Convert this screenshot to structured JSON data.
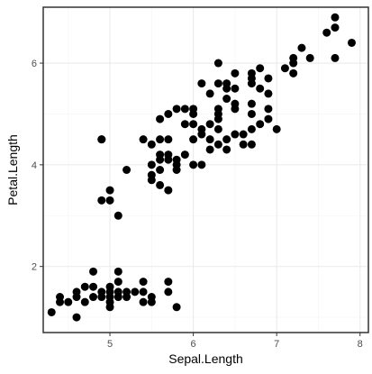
{
  "colors": {
    "background": "#FFFFFF",
    "panel_border": "#333333",
    "grid_major": "#EBEBEB",
    "grid_minor": "#F5F5F5",
    "point": "#000000",
    "tick_label": "#4D4D4D",
    "axis_title": "#000000"
  },
  "chart_data": {
    "type": "scatter",
    "title": "",
    "xlabel": "Sepal.Length",
    "ylabel": "Petal.Length",
    "xlim": [
      4.2,
      8.1
    ],
    "ylim": [
      0.7,
      7.1
    ],
    "x_ticks": [
      5,
      6,
      7,
      8
    ],
    "y_ticks": [
      2,
      4,
      6
    ],
    "x_tick_labels": [
      "5",
      "6",
      "7",
      "8"
    ],
    "y_tick_labels": [
      "2",
      "4",
      "6"
    ],
    "grid": true,
    "legend": "none",
    "series": [
      {
        "points": [
          [
            4.3,
            1.1
          ],
          [
            4.4,
            1.3
          ],
          [
            4.4,
            1.4
          ],
          [
            4.5,
            1.3
          ],
          [
            4.6,
            1.0
          ],
          [
            4.6,
            1.4
          ],
          [
            4.6,
            1.5
          ],
          [
            4.7,
            1.3
          ],
          [
            4.7,
            1.6
          ],
          [
            4.8,
            1.4
          ],
          [
            4.8,
            1.6
          ],
          [
            4.8,
            1.9
          ],
          [
            4.9,
            1.4
          ],
          [
            4.9,
            1.5
          ],
          [
            5.0,
            1.2
          ],
          [
            5.0,
            1.3
          ],
          [
            5.0,
            1.4
          ],
          [
            5.0,
            1.5
          ],
          [
            5.0,
            1.6
          ],
          [
            5.1,
            1.4
          ],
          [
            5.1,
            1.5
          ],
          [
            5.1,
            1.7
          ],
          [
            5.1,
            1.9
          ],
          [
            5.2,
            1.4
          ],
          [
            5.2,
            1.5
          ],
          [
            5.3,
            1.5
          ],
          [
            5.4,
            1.3
          ],
          [
            5.4,
            1.5
          ],
          [
            5.4,
            1.7
          ],
          [
            5.5,
            1.3
          ],
          [
            5.5,
            1.4
          ],
          [
            5.7,
            1.5
          ],
          [
            5.7,
            1.7
          ],
          [
            5.8,
            1.2
          ],
          [
            4.9,
            3.3
          ],
          [
            4.9,
            4.5
          ],
          [
            5.0,
            3.3
          ],
          [
            5.0,
            3.5
          ],
          [
            5.1,
            3.0
          ],
          [
            5.2,
            3.9
          ],
          [
            5.4,
            4.5
          ],
          [
            5.5,
            3.7
          ],
          [
            5.5,
            3.8
          ],
          [
            5.5,
            4.0
          ],
          [
            5.5,
            4.4
          ],
          [
            5.6,
            3.6
          ],
          [
            5.6,
            3.9
          ],
          [
            5.6,
            4.1
          ],
          [
            5.6,
            4.2
          ],
          [
            5.6,
            4.5
          ],
          [
            5.7,
            3.5
          ],
          [
            5.7,
            4.1
          ],
          [
            5.7,
            4.2
          ],
          [
            5.7,
            4.5
          ],
          [
            5.8,
            3.9
          ],
          [
            5.8,
            4.0
          ],
          [
            5.8,
            4.1
          ],
          [
            5.9,
            4.2
          ],
          [
            5.9,
            4.8
          ],
          [
            6.0,
            4.0
          ],
          [
            6.0,
            4.5
          ],
          [
            6.0,
            5.1
          ],
          [
            6.1,
            4.0
          ],
          [
            6.1,
            4.6
          ],
          [
            6.1,
            4.7
          ],
          [
            6.2,
            4.3
          ],
          [
            6.2,
            4.5
          ],
          [
            6.3,
            4.4
          ],
          [
            6.3,
            4.7
          ],
          [
            6.3,
            4.9
          ],
          [
            6.4,
            4.3
          ],
          [
            6.4,
            4.5
          ],
          [
            6.5,
            4.6
          ],
          [
            6.6,
            4.4
          ],
          [
            6.6,
            4.6
          ],
          [
            6.7,
            4.4
          ],
          [
            6.7,
            4.7
          ],
          [
            6.7,
            5.0
          ],
          [
            6.8,
            4.8
          ],
          [
            6.9,
            4.9
          ],
          [
            7.0,
            4.7
          ],
          [
            4.9,
            4.5
          ],
          [
            5.6,
            4.9
          ],
          [
            5.7,
            5.0
          ],
          [
            5.8,
            5.1
          ],
          [
            5.9,
            5.1
          ],
          [
            6.0,
            4.8
          ],
          [
            6.0,
            5.0
          ],
          [
            6.1,
            5.6
          ],
          [
            6.2,
            4.8
          ],
          [
            6.2,
            5.4
          ],
          [
            6.3,
            5.0
          ],
          [
            6.3,
            5.1
          ],
          [
            6.3,
            5.6
          ],
          [
            6.3,
            6.0
          ],
          [
            6.4,
            5.3
          ],
          [
            6.4,
            5.5
          ],
          [
            6.4,
            5.6
          ],
          [
            6.5,
            5.1
          ],
          [
            6.5,
            5.2
          ],
          [
            6.5,
            5.5
          ],
          [
            6.5,
            5.8
          ],
          [
            6.7,
            5.2
          ],
          [
            6.7,
            5.6
          ],
          [
            6.7,
            5.7
          ],
          [
            6.7,
            5.8
          ],
          [
            6.8,
            5.5
          ],
          [
            6.8,
            5.9
          ],
          [
            6.9,
            5.1
          ],
          [
            6.9,
            5.4
          ],
          [
            6.9,
            5.7
          ],
          [
            7.1,
            5.9
          ],
          [
            7.2,
            5.8
          ],
          [
            7.2,
            6.0
          ],
          [
            7.2,
            6.1
          ],
          [
            7.3,
            6.3
          ],
          [
            7.4,
            6.1
          ],
          [
            7.6,
            6.6
          ],
          [
            7.7,
            6.1
          ],
          [
            7.7,
            6.7
          ],
          [
            7.7,
            6.9
          ],
          [
            7.9,
            6.4
          ]
        ]
      }
    ]
  }
}
